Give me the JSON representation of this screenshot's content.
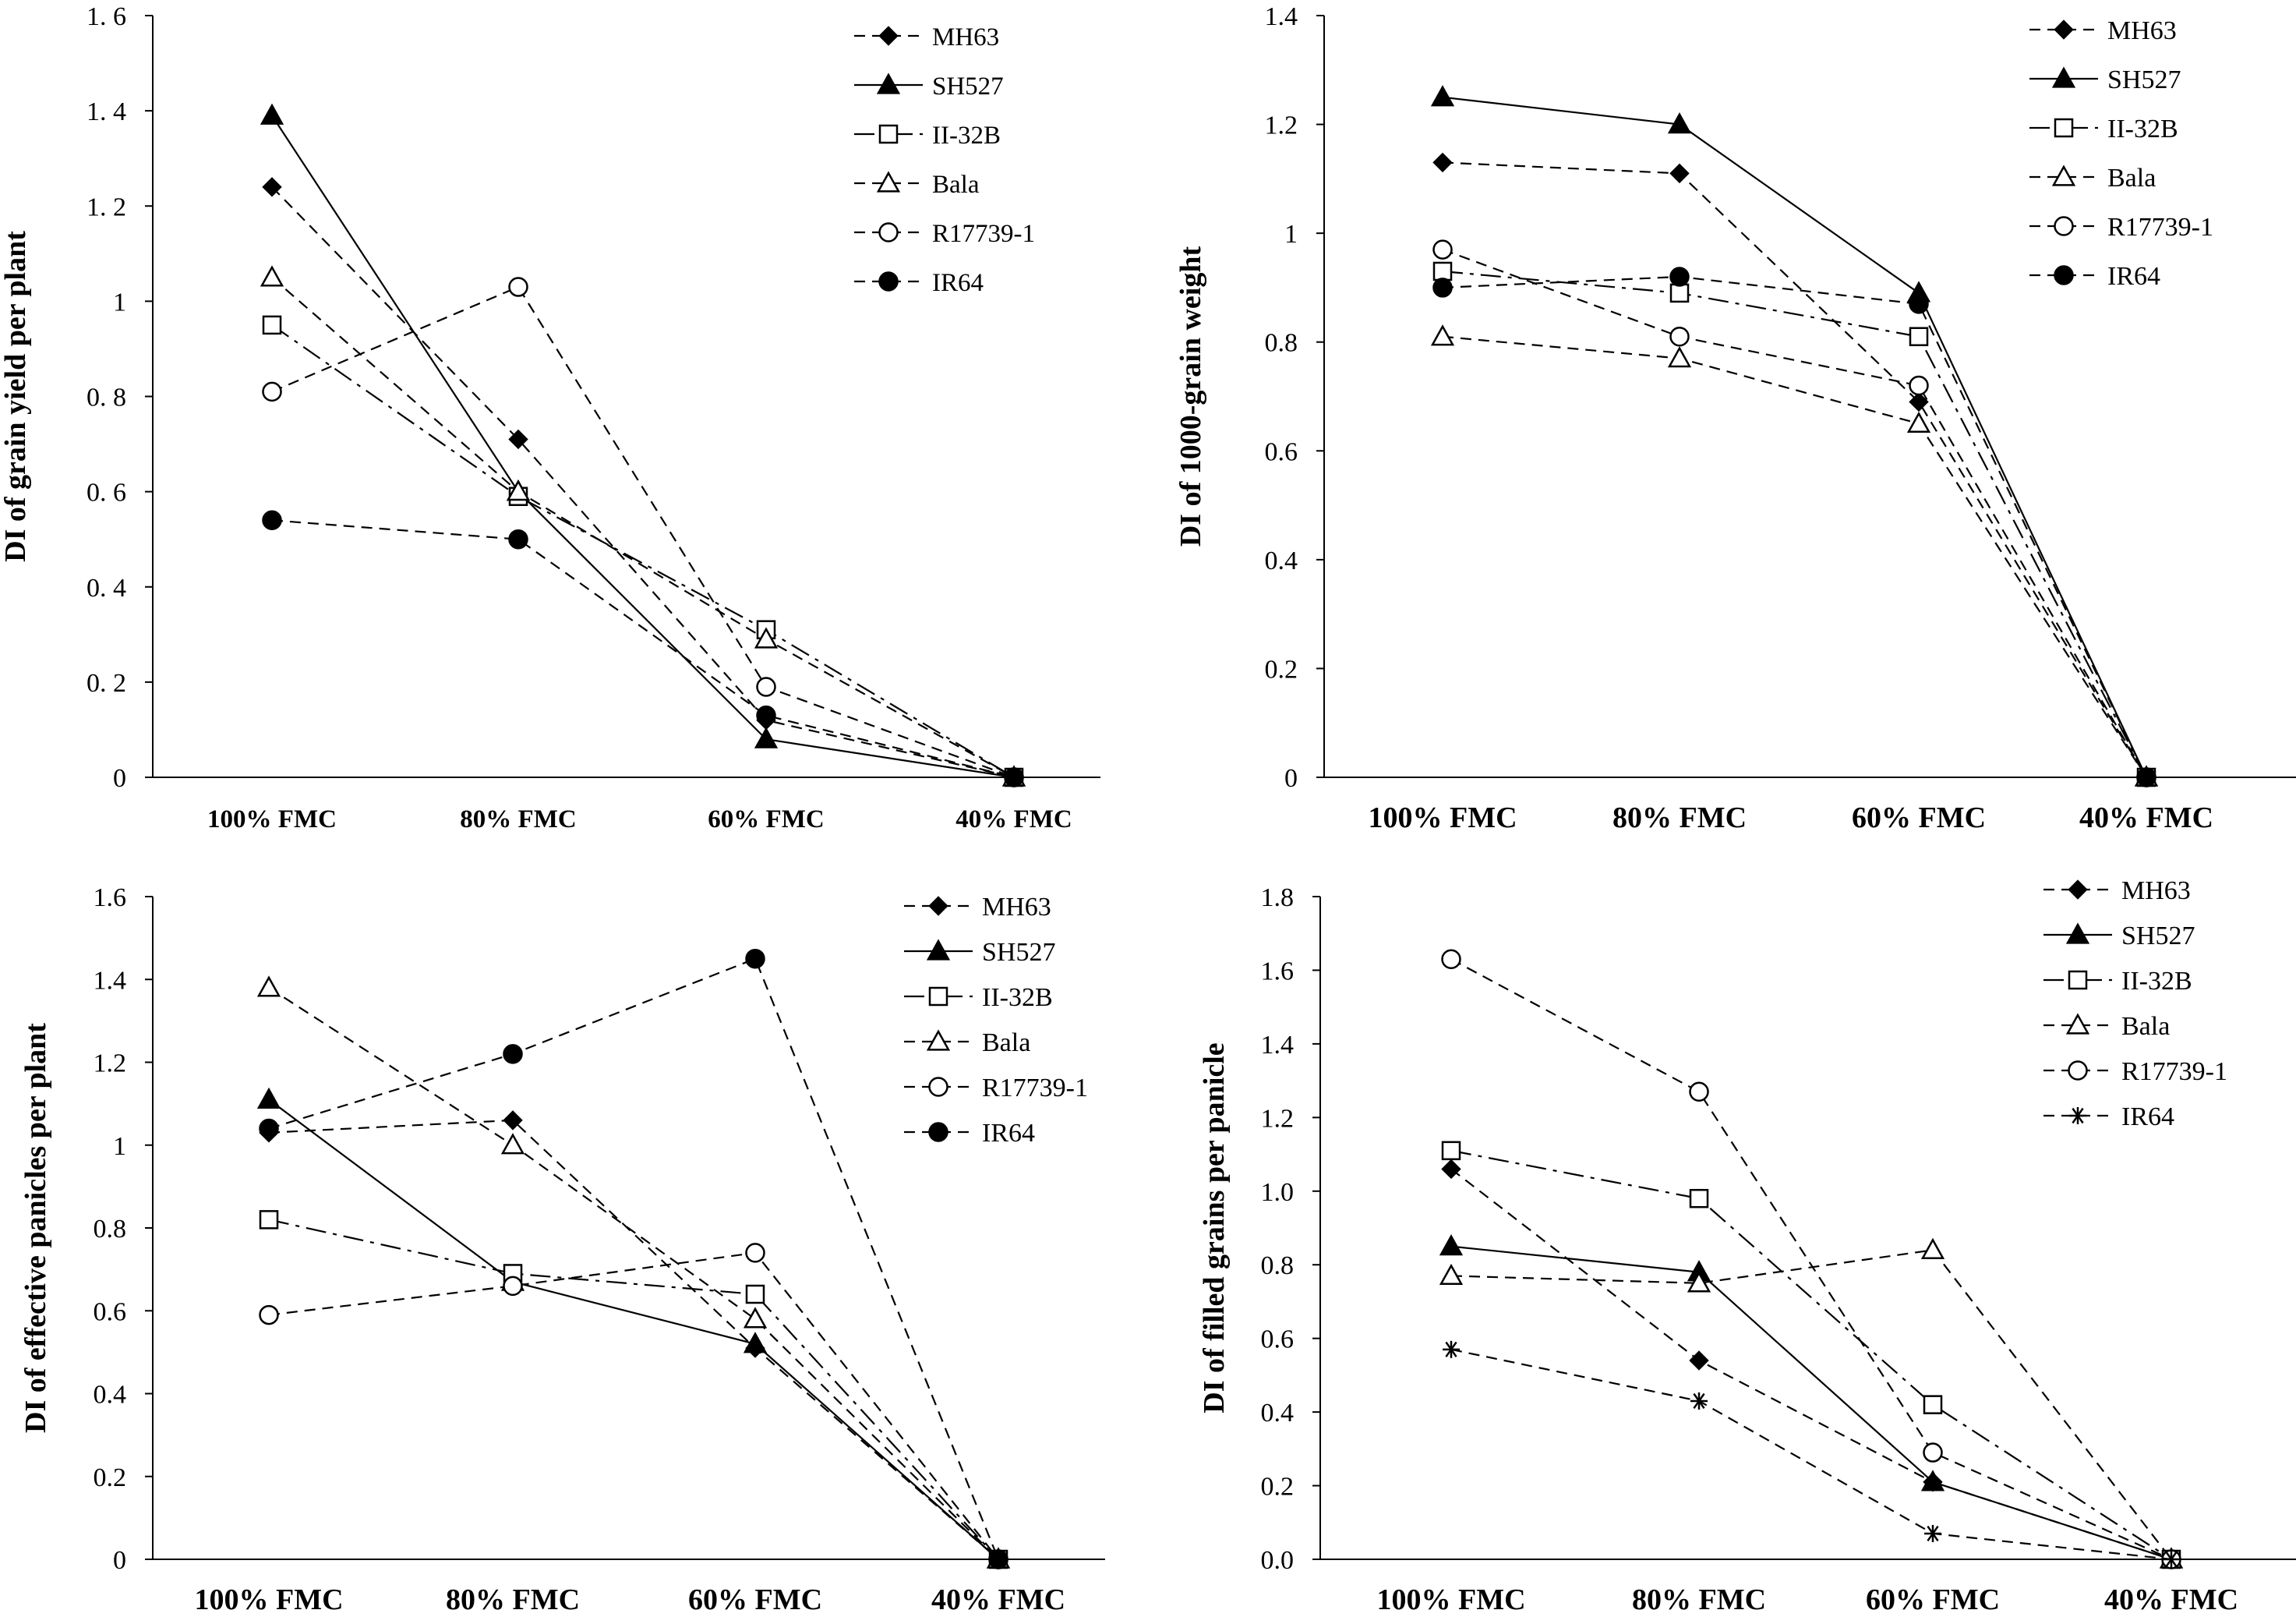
{
  "colors": {
    "ink": "#000000",
    "background": "#ffffff"
  },
  "series_order": [
    "MH63",
    "SH527",
    "II-32B",
    "Bala",
    "R17739-1",
    "IR64"
  ],
  "chart_data": [
    {
      "id": "grain-yield",
      "type": "line",
      "ylabel": "DI of grain yield per plant",
      "categories": [
        "100%  FMC",
        "80%  FMC",
        "60%  FMC",
        "40%  FMC"
      ],
      "ylim": [
        0,
        1.6
      ],
      "ytick_labels": [
        "0",
        "0. 2",
        "0. 4",
        "0. 6",
        "0. 8",
        "1",
        "1. 2",
        "1. 4",
        "1. 6"
      ],
      "legend": [
        "MH63",
        "SH527",
        "II-32B",
        "Bala",
        "R17739-1",
        "IR64"
      ],
      "series": [
        {
          "name": "MH63",
          "marker": "diamond",
          "dash": "dashed",
          "values": [
            1.24,
            0.71,
            0.12,
            0
          ]
        },
        {
          "name": "SH527",
          "marker": "triangle-filled",
          "dash": "solid",
          "values": [
            1.39,
            0.6,
            0.08,
            0
          ]
        },
        {
          "name": "II-32B",
          "marker": "square-open",
          "dash": "dashdot",
          "values": [
            0.95,
            0.59,
            0.31,
            0
          ]
        },
        {
          "name": "Bala",
          "marker": "triangle-open",
          "dash": "dashed",
          "values": [
            1.05,
            0.6,
            0.29,
            0
          ]
        },
        {
          "name": "R17739-1",
          "marker": "circle-open",
          "dash": "dashed",
          "values": [
            0.81,
            1.03,
            0.19,
            0
          ]
        },
        {
          "name": "IR64",
          "marker": "circle-filled",
          "dash": "dashed",
          "values": [
            0.54,
            0.5,
            0.13,
            0
          ]
        }
      ]
    },
    {
      "id": "grain-weight",
      "type": "line",
      "ylabel": "DI of 1000-grain weight",
      "categories": [
        "100% FMC",
        "80% FMC",
        "60% FMC",
        "40% FMC"
      ],
      "ylim": [
        0,
        1.4
      ],
      "ytick_labels": [
        "0",
        "0.2",
        "0.4",
        "0.6",
        "0.8",
        "1",
        "1.2",
        "1.4"
      ],
      "legend": [
        "MH63",
        "SH527",
        "II-32B",
        "Bala",
        "R17739-1",
        "IR64"
      ],
      "series": [
        {
          "name": "MH63",
          "marker": "diamond",
          "dash": "dashed",
          "values": [
            1.13,
            1.11,
            0.69,
            0
          ]
        },
        {
          "name": "SH527",
          "marker": "triangle-filled",
          "dash": "solid",
          "values": [
            1.25,
            1.2,
            0.89,
            0
          ]
        },
        {
          "name": "II-32B",
          "marker": "square-open",
          "dash": "dashdot",
          "values": [
            0.93,
            0.89,
            0.81,
            0
          ]
        },
        {
          "name": "Bala",
          "marker": "triangle-open",
          "dash": "dashed",
          "values": [
            0.81,
            0.77,
            0.65,
            0
          ]
        },
        {
          "name": "R17739-1",
          "marker": "circle-open",
          "dash": "dashed",
          "values": [
            0.97,
            0.81,
            0.72,
            0
          ]
        },
        {
          "name": "IR64",
          "marker": "circle-filled",
          "dash": "dashed",
          "values": [
            0.9,
            0.92,
            0.87,
            0
          ]
        }
      ]
    },
    {
      "id": "effective-panicles",
      "type": "line",
      "ylabel": "DI of effective panicles per plant",
      "categories": [
        "100% FMC",
        "80% FMC",
        "60% FMC",
        "40% FMC"
      ],
      "ylim": [
        0,
        1.6
      ],
      "ytick_labels": [
        "0",
        "0.2",
        "0.4",
        "0.6",
        "0.8",
        "1",
        "1.2",
        "1.4",
        "1.6"
      ],
      "legend": [
        "MH63",
        "SH527",
        "II-32B",
        "Bala",
        "R17739-1",
        "IR64"
      ],
      "series": [
        {
          "name": "MH63",
          "marker": "diamond",
          "dash": "dashed",
          "values": [
            1.03,
            1.06,
            0.51,
            0
          ]
        },
        {
          "name": "SH527",
          "marker": "triangle-filled",
          "dash": "solid",
          "values": [
            1.11,
            0.67,
            0.52,
            0
          ]
        },
        {
          "name": "II-32B",
          "marker": "square-open",
          "dash": "dashdot",
          "values": [
            0.82,
            0.69,
            0.64,
            0
          ]
        },
        {
          "name": "Bala",
          "marker": "triangle-open",
          "dash": "dashed",
          "values": [
            1.38,
            1.0,
            0.58,
            0
          ]
        },
        {
          "name": "R17739-1",
          "marker": "circle-open",
          "dash": "dashed",
          "values": [
            0.59,
            0.66,
            0.74,
            0
          ]
        },
        {
          "name": "IR64",
          "marker": "circle-filled",
          "dash": "dashed",
          "values": [
            1.04,
            1.22,
            1.45,
            0
          ]
        }
      ]
    },
    {
      "id": "filled-grains",
      "type": "line",
      "ylabel": "DI of filled grains per panicle",
      "categories": [
        "100% FMC",
        "80% FMC",
        "60% FMC",
        "40% FMC"
      ],
      "ylim": [
        0,
        1.8
      ],
      "ytick_labels": [
        "0.0",
        "0.2",
        "0.4",
        "0.6",
        "0.8",
        "1.0",
        "1.2",
        "1.4",
        "1.6",
        "1.8"
      ],
      "legend": [
        "MH63",
        "SH527",
        "II-32B",
        "Bala",
        "R17739-1",
        "IR64"
      ],
      "series": [
        {
          "name": "MH63",
          "marker": "diamond",
          "dash": "dashed",
          "values": [
            1.06,
            0.54,
            0.21,
            0
          ]
        },
        {
          "name": "SH527",
          "marker": "triangle-filled",
          "dash": "solid",
          "values": [
            0.85,
            0.78,
            0.21,
            0
          ]
        },
        {
          "name": "II-32B",
          "marker": "square-open",
          "dash": "dashdot",
          "values": [
            1.11,
            0.98,
            0.42,
            0
          ]
        },
        {
          "name": "Bala",
          "marker": "triangle-open",
          "dash": "dashed",
          "values": [
            0.77,
            0.75,
            0.84,
            0
          ]
        },
        {
          "name": "R17739-1",
          "marker": "circle-open",
          "dash": "dashed",
          "values": [
            1.63,
            1.27,
            0.29,
            0
          ]
        },
        {
          "name": "IR64",
          "marker": "asterisk",
          "dash": "dashed",
          "values": [
            0.57,
            0.43,
            0.07,
            0
          ]
        }
      ]
    }
  ]
}
